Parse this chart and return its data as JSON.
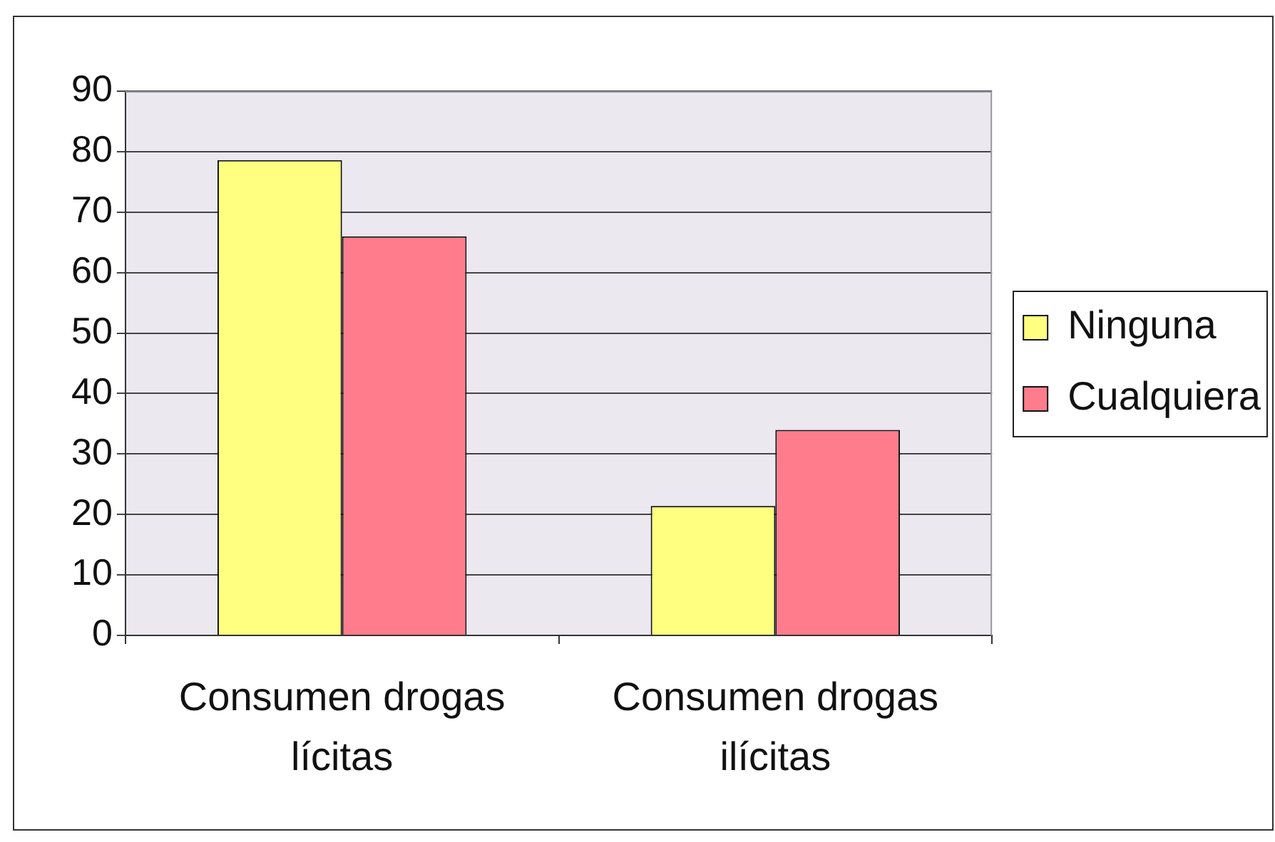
{
  "chart_data": {
    "type": "bar",
    "categories": [
      "Consumen drogas lícitas",
      "Consumen drogas ilícitas"
    ],
    "series": [
      {
        "name": "Ninguna",
        "color": "#ffff80",
        "values": [
          78.6,
          21.4
        ]
      },
      {
        "name": "Cualquiera",
        "color": "#ff7c8c",
        "values": [
          66,
          34
        ]
      }
    ],
    "ylim": [
      0,
      90
    ],
    "yticks": [
      0,
      10,
      20,
      30,
      40,
      50,
      60,
      70,
      80,
      90
    ],
    "grid": "y",
    "legend": "right"
  }
}
